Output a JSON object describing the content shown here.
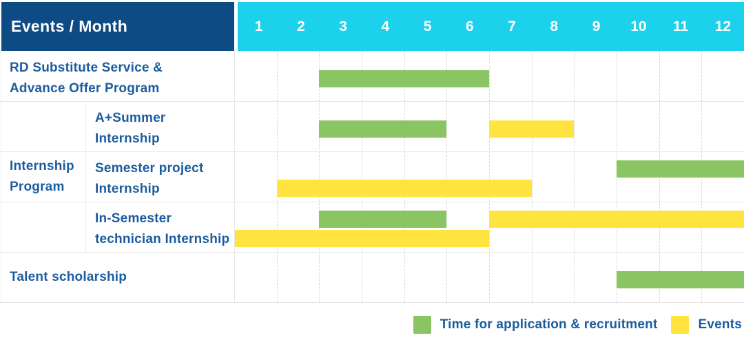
{
  "header": {
    "title": "Events / Month",
    "months": [
      "1",
      "2",
      "3",
      "4",
      "5",
      "6",
      "7",
      "8",
      "9",
      "10",
      "11",
      "12"
    ]
  },
  "colors": {
    "header_bg": "#0d4b84",
    "months_bg": "#1bd1ec",
    "application": "#8bc563",
    "events": "#ffe33e",
    "label_text": "#1c5c9e",
    "grid_line": "#e6e6e6"
  },
  "chart_data": {
    "type": "bar",
    "subtype": "gantt-schedule",
    "title": "Events / Month",
    "x_axis": {
      "unit": "month",
      "ticks": [
        1,
        2,
        3,
        4,
        5,
        6,
        7,
        8,
        9,
        10,
        11,
        12
      ],
      "range": [
        1,
        12
      ]
    },
    "grid": "on",
    "legend_position": "bottom-right",
    "series_legend": [
      {
        "key": "application",
        "label": "Time for application & recruitment",
        "color": "#8bc563"
      },
      {
        "key": "events",
        "label": "Events",
        "color": "#ffe33e"
      }
    ],
    "group_label": "Internship Program",
    "group_label_lines": [
      "Internship",
      "Program"
    ],
    "rows": [
      {
        "group": "",
        "label": "RD Substitute Service & Advance Offer Program",
        "label_lines": [
          "RD Substitute Service &",
          "Advance Offer Program"
        ],
        "bars": [
          {
            "series": "application",
            "start_month": 3,
            "end_month": 6,
            "lane": "single"
          }
        ]
      },
      {
        "group": "Internship Program",
        "label": "A+Summer Internship",
        "label_lines": [
          "A+Summer",
          "Internship"
        ],
        "bars": [
          {
            "series": "application",
            "start_month": 3,
            "end_month": 5,
            "lane": "single"
          },
          {
            "series": "events",
            "start_month": 7,
            "end_month": 8,
            "lane": "single"
          }
        ]
      },
      {
        "group": "Internship Program",
        "label": "Semester project Internship",
        "label_lines": [
          "Semester project",
          "Internship"
        ],
        "bars": [
          {
            "series": "application",
            "start_month": 10,
            "end_month": 12,
            "lane": "top"
          },
          {
            "series": "events",
            "start_month": 2,
            "end_month": 7,
            "lane": "bottom"
          }
        ]
      },
      {
        "group": "Internship Program",
        "label": "In-Semester technician Internship",
        "label_lines": [
          "In-Semester",
          "technician Internship"
        ],
        "bars": [
          {
            "series": "application",
            "start_month": 3,
            "end_month": 5,
            "lane": "top"
          },
          {
            "series": "events",
            "start_month": 7,
            "end_month": 12,
            "lane": "top"
          },
          {
            "series": "events",
            "start_month": 1,
            "end_month": 6,
            "lane": "bottom"
          }
        ]
      },
      {
        "group": "",
        "label": "Talent scholarship",
        "label_lines": [
          "Talent scholarship"
        ],
        "bars": [
          {
            "series": "application",
            "start_month": 10,
            "end_month": 12,
            "lane": "single"
          }
        ]
      }
    ]
  },
  "legend": {
    "items": [
      {
        "key": "application",
        "label": "Time for application & recruitment"
      },
      {
        "key": "events",
        "label": "Events"
      }
    ]
  }
}
